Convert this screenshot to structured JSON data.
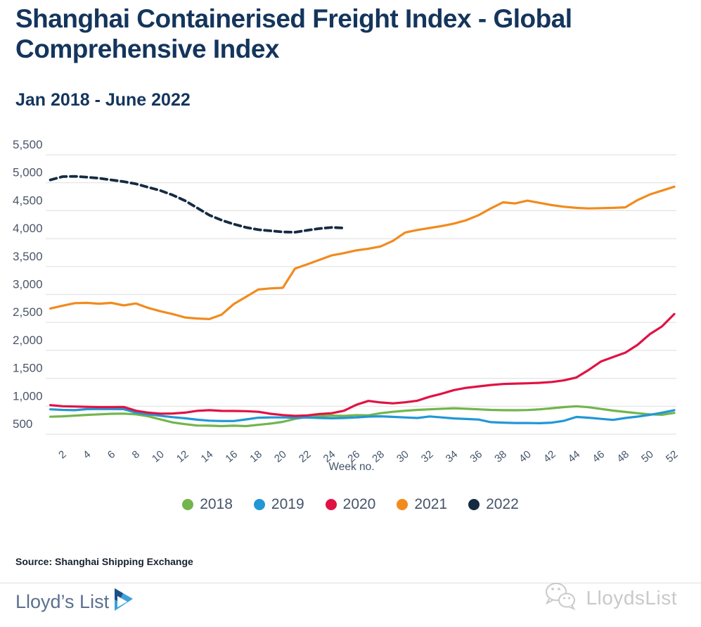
{
  "header": {
    "title": "Shanghai Containerised Freight Index - Global Comprehensive Index",
    "subtitle": "Jan 2018 - June 2022"
  },
  "chart_data": {
    "type": "line",
    "xlabel": "Week no.",
    "xlim": [
      1,
      52
    ],
    "ylim": [
      500,
      5500
    ],
    "grid": "horizontal",
    "legend_position": "bottom",
    "x_ticks": [
      2,
      4,
      6,
      8,
      10,
      12,
      14,
      16,
      18,
      20,
      22,
      24,
      26,
      28,
      30,
      32,
      34,
      36,
      38,
      40,
      42,
      44,
      46,
      48,
      50,
      52
    ],
    "y_ticks": [
      {
        "value": 5500,
        "label": "5,500"
      },
      {
        "value": 5000,
        "label": "5,000"
      },
      {
        "value": 4500,
        "label": "4,500"
      },
      {
        "value": 4000,
        "label": "4,000"
      },
      {
        "value": 3500,
        "label": "3,500"
      },
      {
        "value": 3000,
        "label": "3,000"
      },
      {
        "value": 2500,
        "label": "2,500"
      },
      {
        "value": 2000,
        "label": "2,000"
      },
      {
        "value": 1500,
        "label": "1,500"
      },
      {
        "value": 1000,
        "label": "1,000"
      },
      {
        "value": 500,
        "label": "500"
      }
    ],
    "series": [
      {
        "name": "2018",
        "color": "#72B54C",
        "dash": false,
        "x_start": 1,
        "x_step": 1,
        "values": [
          812,
          820,
          832,
          845,
          855,
          865,
          868,
          855,
          820,
          765,
          710,
          680,
          655,
          652,
          645,
          652,
          645,
          668,
          690,
          720,
          775,
          808,
          822,
          832,
          828,
          840,
          838,
          875,
          900,
          920,
          935,
          945,
          955,
          965,
          955,
          945,
          935,
          930,
          928,
          932,
          945,
          965,
          985,
          1000,
          982,
          952,
          922,
          898,
          875,
          855,
          848,
          882
        ]
      },
      {
        "name": "2019",
        "color": "#2297D5",
        "dash": false,
        "x_start": 1,
        "x_step": 1,
        "values": [
          945,
          935,
          930,
          948,
          952,
          950,
          948,
          885,
          855,
          830,
          805,
          785,
          760,
          742,
          735,
          735,
          765,
          795,
          800,
          800,
          795,
          798,
          790,
          785,
          790,
          800,
          815,
          820,
          810,
          800,
          790,
          818,
          800,
          782,
          772,
          762,
          715,
          706,
          700,
          700,
          696,
          706,
          740,
          808,
          795,
          775,
          756,
          790,
          815,
          845,
          885,
          930
        ]
      },
      {
        "name": "2020",
        "color": "#E01243",
        "dash": false,
        "x_start": 1,
        "x_step": 1,
        "values": [
          1020,
          1000,
          995,
          990,
          985,
          985,
          988,
          920,
          885,
          868,
          870,
          885,
          918,
          930,
          917,
          915,
          912,
          900,
          865,
          843,
          828,
          836,
          862,
          875,
          920,
          1025,
          1096,
          1068,
          1052,
          1070,
          1100,
          1170,
          1225,
          1290,
          1330,
          1355,
          1380,
          1398,
          1405,
          1410,
          1420,
          1435,
          1465,
          1515,
          1650,
          1800,
          1880,
          1960,
          2100,
          2290,
          2430,
          2650
        ]
      },
      {
        "name": "2021",
        "color": "#F18B1E",
        "dash": false,
        "x_start": 1,
        "x_step": 1,
        "values": [
          2750,
          2800,
          2845,
          2850,
          2835,
          2850,
          2805,
          2840,
          2760,
          2700,
          2650,
          2590,
          2570,
          2560,
          2640,
          2830,
          2960,
          3090,
          3110,
          3120,
          3465,
          3540,
          3620,
          3700,
          3740,
          3790,
          3820,
          3860,
          3960,
          4110,
          4155,
          4190,
          4225,
          4270,
          4330,
          4420,
          4540,
          4650,
          4630,
          4680,
          4640,
          4600,
          4570,
          4550,
          4540,
          4545,
          4550,
          4560,
          4690,
          4790,
          4860,
          4930
        ]
      },
      {
        "name": "2022",
        "color": "#142B42",
        "dash": true,
        "x_start": 1,
        "x_step": 1,
        "values": [
          5050,
          5110,
          5115,
          5100,
          5080,
          5050,
          5020,
          4980,
          4920,
          4860,
          4780,
          4680,
          4550,
          4420,
          4330,
          4260,
          4200,
          4160,
          4140,
          4120,
          4115,
          4150,
          4180,
          4200,
          4190
        ]
      }
    ]
  },
  "footer": {
    "source": "Source: Shanghai Shipping Exchange"
  },
  "branding": {
    "logo_text": "Lloyd’s List",
    "watermark_text": "LloydsList"
  },
  "colors": {
    "title": "#14355C",
    "axis_label": "#4A5568",
    "tick_label": "#44546A",
    "gridline": "#E3E3E3",
    "logo": "#5C6F8F",
    "watermark": "#C9C9C9"
  }
}
